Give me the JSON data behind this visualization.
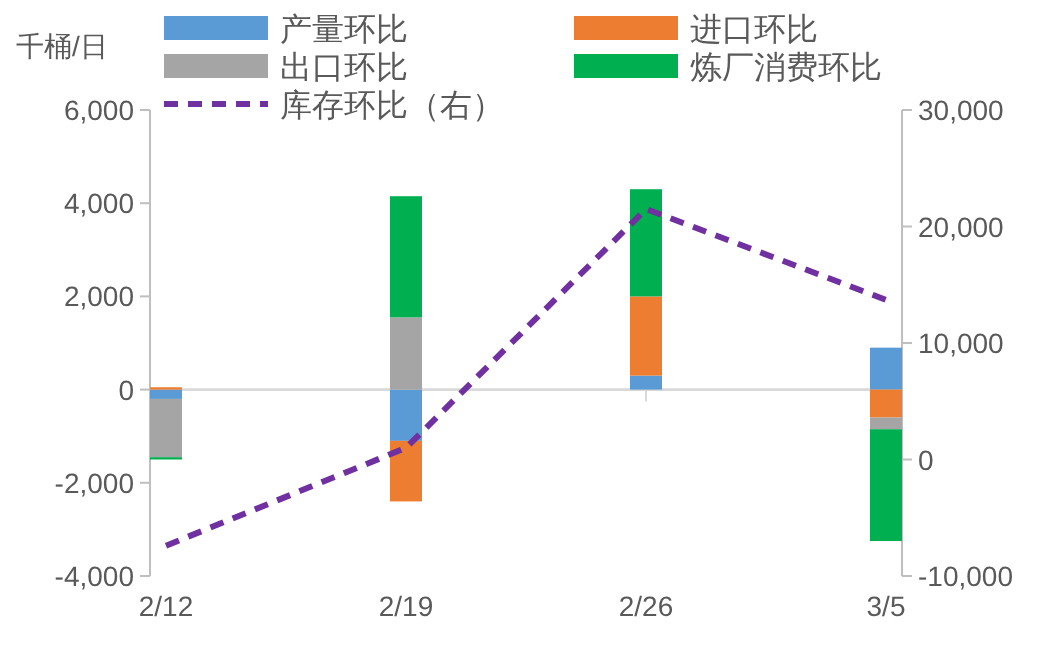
{
  "chart_data": {
    "type": "bar",
    "stacked": true,
    "legend": "top",
    "ylabel": "千桶/日",
    "categories": [
      "2/12",
      "2/19",
      "2/26",
      "3/5"
    ],
    "ylim": [
      -4000,
      6000
    ],
    "yticks": [
      {
        "value": -4000,
        "label": "-4,000"
      },
      {
        "value": -2000,
        "label": "-2,000"
      },
      0,
      {
        "value": 2000,
        "label": "2,000"
      },
      {
        "value": 4000,
        "label": "4,000"
      },
      {
        "value": 6000,
        "label": "6,000"
      }
    ],
    "y2lim": [
      -10000,
      30000
    ],
    "y2ticks": [
      {
        "value": -10000,
        "label": "-10,000"
      },
      0,
      {
        "value": 10000,
        "label": "10,000"
      },
      {
        "value": 20000,
        "label": "20,000"
      },
      {
        "value": 30000,
        "label": "30,000"
      }
    ],
    "series": [
      {
        "name": "产量环比",
        "color": "#5b9bd5",
        "values": [
          -200,
          -1100,
          300,
          900
        ]
      },
      {
        "name": "进口环比",
        "color": "#ed7d31",
        "values": [
          50,
          -1300,
          1700,
          -600
        ]
      },
      {
        "name": "出口环比",
        "color": "#a5a5a5",
        "values": [
          -1250,
          1550,
          null,
          -250
        ]
      },
      {
        "name": "炼厂消费环比",
        "color": "#00b050",
        "values": [
          -50,
          2600,
          2300,
          -2400
        ]
      },
      {
        "name": "库存环比（右）",
        "color": "#7030a0",
        "type": "line",
        "axis": "y2",
        "line_style": "dashed",
        "marker": "none",
        "values": [
          -7400,
          1000,
          21500,
          13700
        ]
      }
    ]
  }
}
